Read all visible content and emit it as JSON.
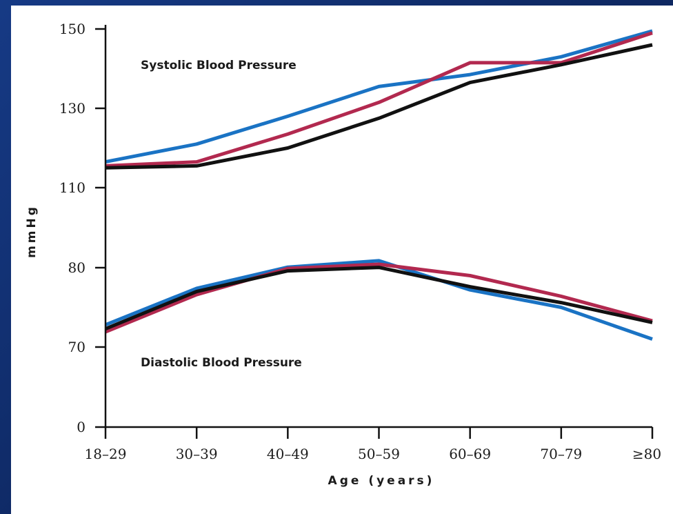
{
  "chart_data": {
    "type": "line",
    "categories": [
      "18–29",
      "30–39",
      "40–49",
      "50–59",
      "60–69",
      "70–79",
      "≥80"
    ],
    "yticks": [
      "150",
      "130",
      "110",
      "80",
      "70",
      "0"
    ],
    "ylabel": "mmHg",
    "xlabel": "Age (years)",
    "annotations": {
      "systolic": "Systolic Blood Pressure",
      "diastolic": "Diastolic Blood Pressure"
    },
    "grid": false,
    "series": [
      {
        "group": "systolic",
        "color": "#1a73c4",
        "values": [
          116.5,
          121,
          128,
          135.5,
          138.5,
          143,
          149.5
        ]
      },
      {
        "group": "systolic",
        "color": "#b2294f",
        "values": [
          115.5,
          116.5,
          123.5,
          131.5,
          141.5,
          141.5,
          149
        ]
      },
      {
        "group": "systolic",
        "color": "#111111",
        "values": [
          115,
          115.5,
          120,
          127.5,
          136.5,
          141,
          146
        ]
      },
      {
        "group": "diastolic",
        "color": "#1a73c4",
        "values": [
          72.8,
          77.4,
          80.2,
          82.6,
          77.2,
          75.0,
          71.0
        ]
      },
      {
        "group": "diastolic",
        "color": "#b2294f",
        "values": [
          71.9,
          76.6,
          79.9,
          81.3,
          79.0,
          76.4,
          73.3
        ]
      },
      {
        "group": "diastolic",
        "color": "#111111",
        "values": [
          72.3,
          77.0,
          79.6,
          80.1,
          77.6,
          75.6,
          73.1
        ]
      }
    ]
  }
}
